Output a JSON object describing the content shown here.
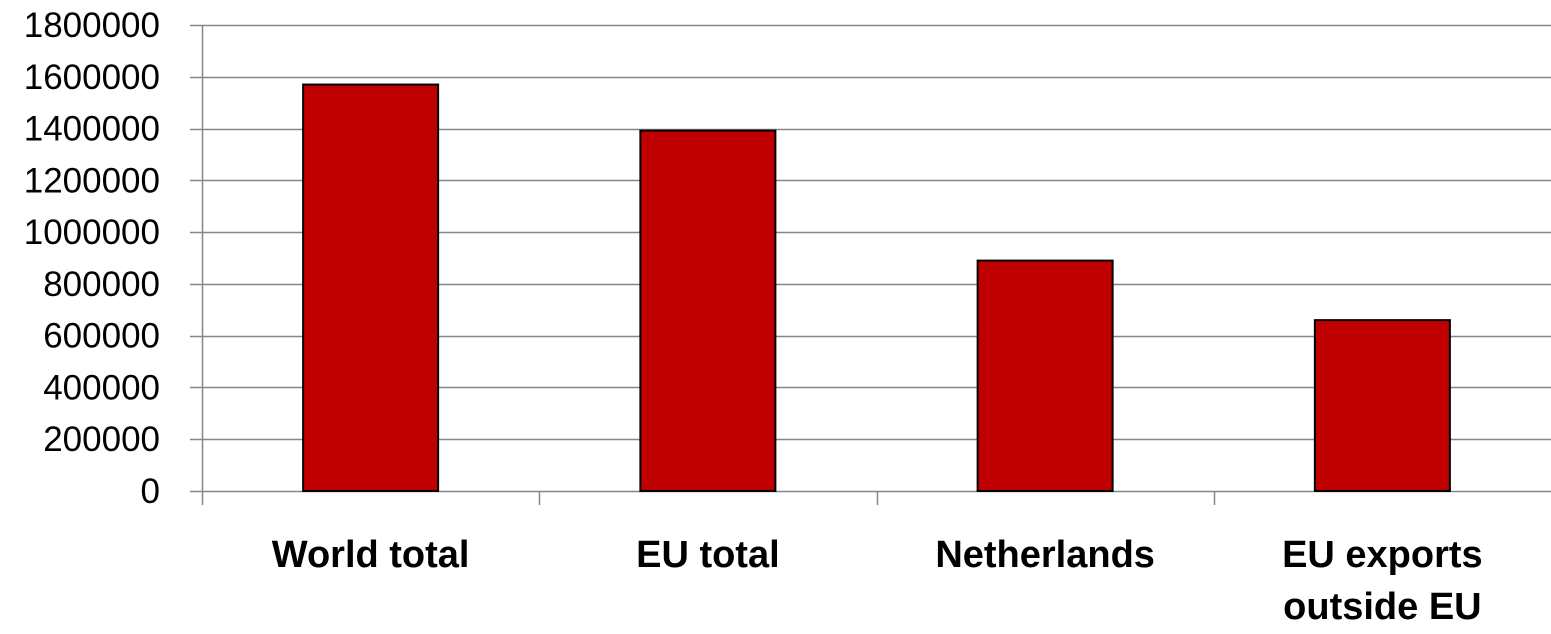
{
  "chart_data": {
    "type": "bar",
    "categories": [
      "World total",
      "EU total",
      "Netherlands",
      "EU exports outside EU"
    ],
    "category_lines": [
      [
        "World total"
      ],
      [
        "EU total"
      ],
      [
        "Netherlands"
      ],
      [
        "EU exports",
        "outside EU"
      ]
    ],
    "values": [
      1570000,
      1392000,
      890000,
      660000
    ],
    "ylim": [
      0,
      1800000
    ],
    "yticks": [
      0,
      200000,
      400000,
      600000,
      800000,
      1000000,
      1200000,
      1400000,
      1600000,
      1800000
    ],
    "ytick_labels": [
      "0",
      "200000",
      "400000",
      "600000",
      "800000",
      "1000000",
      "1200000",
      "1400000",
      "1600000",
      "1800000"
    ],
    "title": "",
    "xlabel": "",
    "ylabel": "",
    "grid": true,
    "legend": "none",
    "colors": {
      "bar_fill": "#c00000",
      "bar_stroke": "#000000",
      "grid": "#868686",
      "axis": "#868686",
      "text": "#000000"
    }
  }
}
